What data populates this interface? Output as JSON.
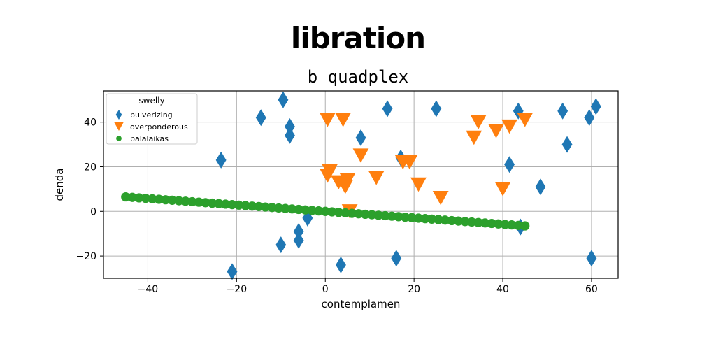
{
  "chart_data": {
    "type": "scatter",
    "title": "libration",
    "subtitle": "b quadplex",
    "xlabel": "contemplamen",
    "ylabel": "denda",
    "xlim": [
      -50,
      66
    ],
    "ylim": [
      -30,
      54
    ],
    "xticks": [
      -40,
      -20,
      0,
      20,
      40,
      60
    ],
    "xtick_labels": [
      "−40",
      "−20",
      "0",
      "20",
      "40",
      "60"
    ],
    "yticks": [
      -20,
      0,
      20,
      40
    ],
    "ytick_labels": [
      "−20",
      "0",
      "20",
      "40"
    ],
    "grid": true,
    "legend": {
      "title": "swelly",
      "placement": "top-left"
    },
    "series": [
      {
        "name": "pulverizing",
        "marker": "diamond",
        "color": "#1f77b4",
        "points": [
          [
            -23.5,
            23
          ],
          [
            -21,
            -27
          ],
          [
            -14.5,
            42
          ],
          [
            -9.5,
            50
          ],
          [
            -8,
            38
          ],
          [
            -8,
            34
          ],
          [
            -10,
            -15
          ],
          [
            -6,
            -9
          ],
          [
            -6,
            -13
          ],
          [
            -4,
            -3
          ],
          [
            3.5,
            -24
          ],
          [
            8,
            33
          ],
          [
            14,
            46
          ],
          [
            16,
            -21
          ],
          [
            17,
            24
          ],
          [
            25,
            46
          ],
          [
            41.5,
            21
          ],
          [
            43.5,
            45
          ],
          [
            44,
            -7
          ],
          [
            48.5,
            11
          ],
          [
            53.5,
            45
          ],
          [
            54.5,
            30
          ],
          [
            59.5,
            42
          ],
          [
            61,
            47
          ],
          [
            60,
            -21
          ]
        ]
      },
      {
        "name": "overponderous",
        "marker": "triangle_down",
        "color": "#ff7f0e",
        "points": [
          [
            0.5,
            41
          ],
          [
            1,
            18
          ],
          [
            0.5,
            16
          ],
          [
            3,
            13
          ],
          [
            4,
            41
          ],
          [
            4.5,
            11
          ],
          [
            5,
            14
          ],
          [
            5.5,
            0
          ],
          [
            8,
            25
          ],
          [
            11.5,
            15
          ],
          [
            17.5,
            22
          ],
          [
            19,
            22
          ],
          [
            21,
            12
          ],
          [
            26,
            6
          ],
          [
            33.5,
            33
          ],
          [
            34.5,
            40
          ],
          [
            38.5,
            36
          ],
          [
            40,
            10
          ],
          [
            41.5,
            38
          ],
          [
            45,
            41
          ]
        ]
      },
      {
        "name": "balalaikas",
        "marker": "circle",
        "color": "#2ca02c",
        "x_start": -45,
        "x_end": 45,
        "count": 61,
        "y_start": 6.5,
        "y_end": -6.5
      }
    ]
  }
}
